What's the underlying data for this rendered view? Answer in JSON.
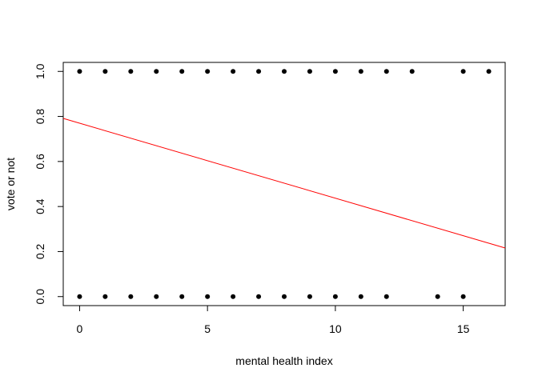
{
  "chart_data": {
    "type": "scatter",
    "title": "",
    "xlabel": "mental health index",
    "ylabel": "vote or not",
    "xlim": [
      -0.64,
      16.64
    ],
    "ylim": [
      -0.04,
      1.04
    ],
    "xticks": [
      0,
      5,
      10,
      15
    ],
    "xtick_labels": [
      "0",
      "5",
      "10",
      "15"
    ],
    "yticks": [
      0.0,
      0.2,
      0.4,
      0.6,
      0.8,
      1.0
    ],
    "ytick_labels": [
      "0.0",
      "0.2",
      "0.4",
      "0.6",
      "0.8",
      "1.0"
    ],
    "points_y1_x": [
      0,
      1,
      2,
      3,
      4,
      5,
      6,
      7,
      8,
      9,
      10,
      11,
      12,
      13,
      15,
      16
    ],
    "points_y0_x": [
      0,
      1,
      2,
      3,
      4,
      5,
      6,
      7,
      8,
      9,
      10,
      11,
      12,
      14,
      15
    ],
    "fit_line": {
      "intercept": 0.77,
      "slope": -0.0333,
      "color": "#ff0000"
    },
    "point_color": "#000000",
    "grid": false,
    "legend": "none"
  }
}
